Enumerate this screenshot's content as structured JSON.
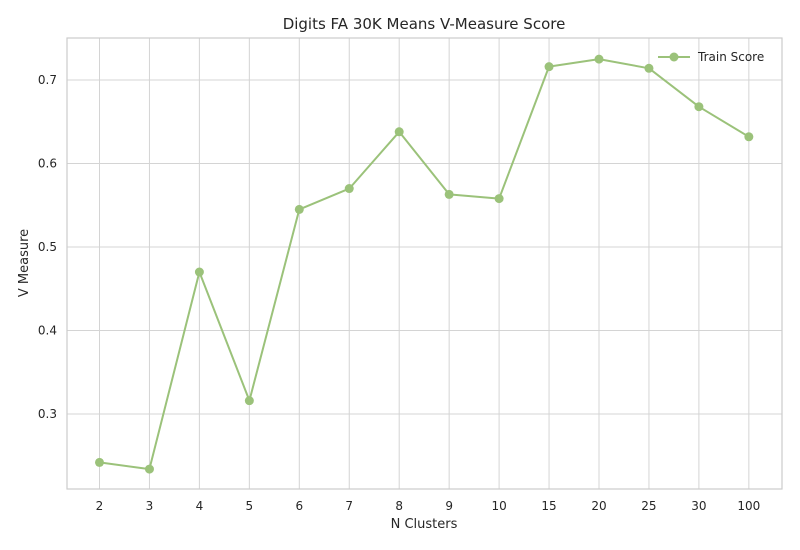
{
  "chart_data": {
    "type": "line",
    "title": "Digits FA 30K Means V-Measure Score",
    "xlabel": "N Clusters",
    "ylabel": "V Measure",
    "categories": [
      "2",
      "3",
      "4",
      "5",
      "6",
      "7",
      "8",
      "9",
      "10",
      "15",
      "20",
      "25",
      "30",
      "100"
    ],
    "yticks": [
      "0.3",
      "0.4",
      "0.5",
      "0.6",
      "0.7"
    ],
    "ylim": [
      0.21,
      0.75
    ],
    "grid": true,
    "legend": "top-right",
    "series": [
      {
        "name": "Train Score",
        "color": "#9bc27a",
        "marker": "circle",
        "values": [
          0.242,
          0.234,
          0.47,
          0.316,
          0.545,
          0.57,
          0.638,
          0.563,
          0.558,
          0.716,
          0.725,
          0.714,
          0.668,
          0.632
        ]
      }
    ]
  }
}
